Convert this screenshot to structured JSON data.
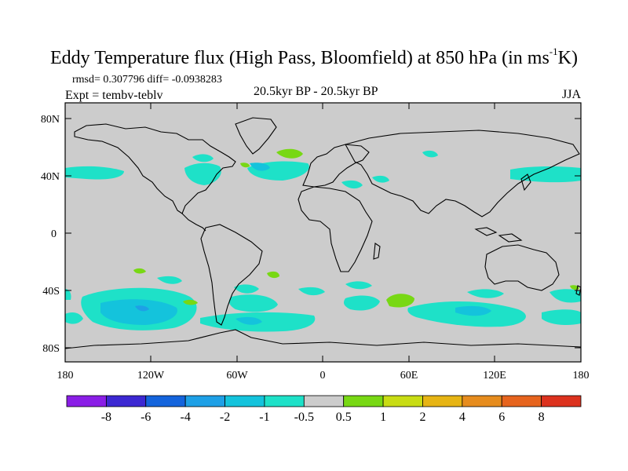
{
  "map": {
    "title": "Eddy Temperature flux (High Pass, Bloomfield) at 850 hPa (in ms",
    "title_sup": "-1",
    "title_end": "K)",
    "rmsd_label": "rmsd= 0.307796 diff= -0.0938283",
    "expt_label": "Expt = tembv-teblv",
    "subtitle": "20.5kyr BP - 20.5kyr BP",
    "season": "JJA",
    "lat_ticks": [
      "80N",
      "40N",
      "0",
      "40S",
      "80S"
    ],
    "lon_ticks": [
      "180",
      "120W",
      "60W",
      "0",
      "60E",
      "120E",
      "180"
    ]
  },
  "colorbar": {
    "colors": [
      "#8a1ee6",
      "#3c28d2",
      "#1464dc",
      "#1ea0e6",
      "#14c3dc",
      "#1ee1c8",
      "#cccccc",
      "#78d814",
      "#c8dc14",
      "#e6b414",
      "#e68c1e",
      "#e6641e",
      "#dc321e"
    ],
    "labels": [
      "-8",
      "-6",
      "-4",
      "-2",
      "-1",
      "-0.5",
      "0.5",
      "1",
      "2",
      "4",
      "6",
      "8"
    ]
  },
  "icons": {
    "coastline": "coastline-outline"
  }
}
